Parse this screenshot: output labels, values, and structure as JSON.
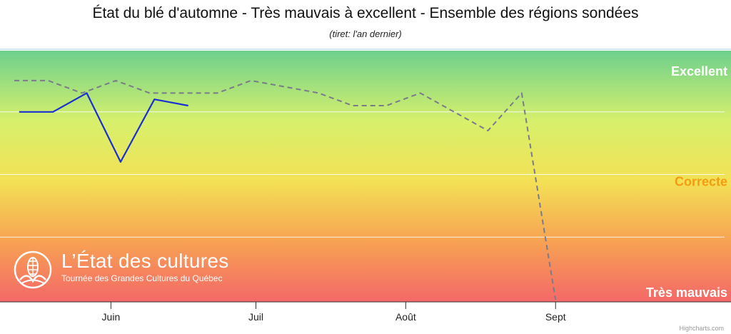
{
  "chart_data": {
    "type": "line",
    "title": "État du blé d'automne - Très mauvais à excellent - Ensemble des régions sondées",
    "subtitle": "(tiret: l'an dernier)",
    "xlabel": "",
    "ylabel": "",
    "ylim": [
      1,
      5
    ],
    "x_tick_labels": [
      "Juin",
      "Juil",
      "Août",
      "Sept"
    ],
    "y_band_labels": [
      {
        "level": 5,
        "label": "Excellent",
        "color": "#ffffff"
      },
      {
        "level": 3,
        "label": "Correcte",
        "color": "#f39c12"
      },
      {
        "level": 1,
        "label": "Très mauvais",
        "color": "#ffffff"
      }
    ],
    "grid": true,
    "series": [
      {
        "style": "solid",
        "color": "#1a2fd1",
        "points": [
          {
            "x": "2024-05-13",
            "y": 4.0
          },
          {
            "x": "2024-05-20",
            "y": 4.0
          },
          {
            "x": "2024-05-27",
            "y": 4.3
          },
          {
            "x": "2024-06-03",
            "y": 3.2
          },
          {
            "x": "2024-06-10",
            "y": 4.2
          },
          {
            "x": "2024-06-17",
            "y": 4.1
          }
        ]
      },
      {
        "style": "dashed",
        "color": "#7a7a8a",
        "points": [
          {
            "x": "2024-05-12",
            "y": 4.5
          },
          {
            "x": "2024-05-19",
            "y": 4.5
          },
          {
            "x": "2024-05-26",
            "y": 4.3
          },
          {
            "x": "2024-06-02",
            "y": 4.5
          },
          {
            "x": "2024-06-09",
            "y": 4.3
          },
          {
            "x": "2024-06-16",
            "y": 4.3
          },
          {
            "x": "2024-06-23",
            "y": 4.3
          },
          {
            "x": "2024-06-30",
            "y": 4.5
          },
          {
            "x": "2024-07-07",
            "y": 4.4
          },
          {
            "x": "2024-07-14",
            "y": 4.3
          },
          {
            "x": "2024-07-21",
            "y": 4.1
          },
          {
            "x": "2024-07-28",
            "y": 4.1
          },
          {
            "x": "2024-08-04",
            "y": 4.3
          },
          {
            "x": "2024-08-11",
            "y": 4.0
          },
          {
            "x": "2024-08-18",
            "y": 3.7
          },
          {
            "x": "2024-08-25",
            "y": 4.3
          },
          {
            "x": "2024-09-01",
            "y": 1.0
          }
        ]
      }
    ]
  },
  "watermark": {
    "title": "L’État des cultures",
    "subtitle": "Tournée des Grandes Cultures du Québec"
  },
  "credits": "Highcharts.com",
  "colors": {
    "excellent": "#6dd08d",
    "good": "#d7f06c",
    "fair": "#f3e155",
    "poor": "#f7a253",
    "very_poor": "#f46868"
  }
}
